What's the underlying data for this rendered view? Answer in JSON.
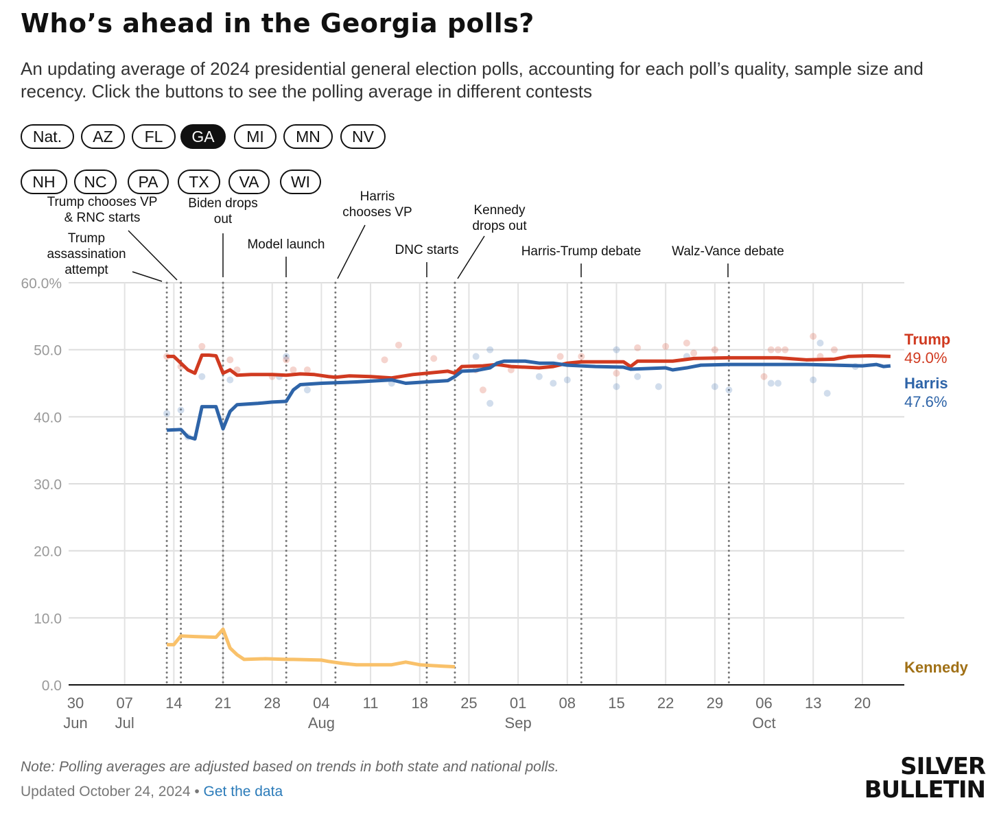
{
  "title": "Who’s ahead in the Georgia polls?",
  "subtitle": "An updating average of 2024 presidential general election polls, accounting for each poll’s quality, sample size and recency. Click the buttons to see the polling average in different contests",
  "buttons": [
    {
      "label": "Nat.",
      "active": false
    },
    {
      "label": "AZ",
      "active": false
    },
    {
      "label": "FL",
      "active": false
    },
    {
      "label": "GA",
      "active": true
    },
    {
      "label": "MI",
      "active": false
    },
    {
      "label": "MN",
      "active": false
    },
    {
      "label": "NV",
      "active": false
    },
    {
      "label": "NH",
      "active": false
    },
    {
      "label": "NC",
      "active": false
    },
    {
      "label": "PA",
      "active": false
    },
    {
      "label": "TX",
      "active": false
    },
    {
      "label": "VA",
      "active": false
    },
    {
      "label": "WI",
      "active": false
    }
  ],
  "note": "Note: Polling averages are adjusted based on trends in both state and national polls.",
  "updated": "Updated October 24, 2024 •",
  "get_data": "Get the data",
  "logo": [
    "SILVER",
    "BULLETIN"
  ],
  "chart_data": {
    "type": "line",
    "x_unit": "days since 30 Jun 2024",
    "ylim": [
      0,
      60
    ],
    "xlim": [
      0,
      117
    ],
    "y_ticks": [
      {
        "v": 0,
        "label": "0.0"
      },
      {
        "v": 10,
        "label": "10.0"
      },
      {
        "v": 20,
        "label": "20.0"
      },
      {
        "v": 30,
        "label": "30.0"
      },
      {
        "v": 40,
        "label": "40.0"
      },
      {
        "v": 50,
        "label": "50.0"
      },
      {
        "v": 60,
        "label": "60.0%"
      }
    ],
    "x_ticks": [
      {
        "d": 0,
        "label": "30",
        "month": "Jun"
      },
      {
        "d": 7,
        "label": "07",
        "month": "Jul"
      },
      {
        "d": 14,
        "label": "14"
      },
      {
        "d": 21,
        "label": "21"
      },
      {
        "d": 28,
        "label": "28"
      },
      {
        "d": 35,
        "label": "04",
        "month": "Aug"
      },
      {
        "d": 42,
        "label": "11"
      },
      {
        "d": 49,
        "label": "18"
      },
      {
        "d": 56,
        "label": "25"
      },
      {
        "d": 63,
        "label": "01",
        "month": "Sep"
      },
      {
        "d": 70,
        "label": "08"
      },
      {
        "d": 77,
        "label": "15"
      },
      {
        "d": 84,
        "label": "22"
      },
      {
        "d": 91,
        "label": "29"
      },
      {
        "d": 98,
        "label": "06",
        "month": "Oct"
      },
      {
        "d": 105,
        "label": "13"
      },
      {
        "d": 112,
        "label": "20"
      }
    ],
    "events": [
      {
        "d": 13,
        "lines": [
          "Trump",
          "assassination",
          "attempt"
        ]
      },
      {
        "d": 15,
        "lines": [
          "Trump chooses VP",
          "& RNC starts"
        ]
      },
      {
        "d": 21,
        "lines": [
          "Biden drops",
          "out"
        ]
      },
      {
        "d": 30,
        "lines": [
          "Model launch"
        ]
      },
      {
        "d": 37,
        "lines": [
          "Harris",
          "chooses VP"
        ]
      },
      {
        "d": 50,
        "lines": [
          "DNC starts"
        ]
      },
      {
        "d": 54,
        "lines": [
          "Kennedy",
          "drops out"
        ]
      },
      {
        "d": 72,
        "lines": [
          "Harris-Trump debate"
        ]
      },
      {
        "d": 93,
        "lines": [
          "Walz-Vance debate"
        ]
      }
    ],
    "series": [
      {
        "name": "Trump",
        "final_label": "49.0%",
        "color": "#d03a20",
        "points": [
          [
            13,
            49
          ],
          [
            14,
            49
          ],
          [
            15,
            48
          ],
          [
            16,
            47
          ],
          [
            17,
            46.5
          ],
          [
            18,
            49.2
          ],
          [
            19,
            49.2
          ],
          [
            20,
            49.1
          ],
          [
            21,
            46.5
          ],
          [
            22,
            47
          ],
          [
            23,
            46.2
          ],
          [
            25,
            46.3
          ],
          [
            28,
            46.3
          ],
          [
            30,
            46.2
          ],
          [
            32,
            46.4
          ],
          [
            34,
            46.3
          ],
          [
            36,
            46
          ],
          [
            37,
            45.9
          ],
          [
            39,
            46.1
          ],
          [
            42,
            46
          ],
          [
            45,
            45.8
          ],
          [
            48,
            46.3
          ],
          [
            50,
            46.5
          ],
          [
            53,
            46.8
          ],
          [
            54,
            46.5
          ],
          [
            55,
            47.5
          ],
          [
            58,
            47.6
          ],
          [
            60,
            47.8
          ],
          [
            62,
            47.5
          ],
          [
            66,
            47.3
          ],
          [
            68,
            47.5
          ],
          [
            70,
            48
          ],
          [
            72,
            48.2
          ],
          [
            74,
            48.2
          ],
          [
            78,
            48.2
          ],
          [
            79,
            47.5
          ],
          [
            80,
            48.3
          ],
          [
            85,
            48.3
          ],
          [
            88,
            48.7
          ],
          [
            93,
            48.8
          ],
          [
            100,
            48.8
          ],
          [
            104,
            48.5
          ],
          [
            108,
            48.6
          ],
          [
            110,
            49
          ],
          [
            113,
            49.1
          ],
          [
            116,
            49
          ]
        ],
        "polls": [
          [
            13,
            49
          ],
          [
            15,
            47.5
          ],
          [
            18,
            50.5
          ],
          [
            22,
            48.5
          ],
          [
            23,
            47
          ],
          [
            28,
            46
          ],
          [
            30,
            48.5
          ],
          [
            31,
            47
          ],
          [
            33,
            47
          ],
          [
            44,
            48.5
          ],
          [
            46,
            50.7
          ],
          [
            51,
            48.7
          ],
          [
            57,
            47
          ],
          [
            58,
            44
          ],
          [
            62,
            47
          ],
          [
            69,
            49
          ],
          [
            72,
            49
          ],
          [
            77,
            46.5
          ],
          [
            80,
            50.3
          ],
          [
            84,
            50.5
          ],
          [
            87,
            51
          ],
          [
            88,
            49.5
          ],
          [
            91,
            50
          ],
          [
            99,
            50
          ],
          [
            100,
            50
          ],
          [
            101,
            50
          ],
          [
            98,
            46
          ],
          [
            105,
            52
          ],
          [
            106,
            49
          ],
          [
            108,
            50
          ]
        ]
      },
      {
        "name": "Harris",
        "final_label": "47.6%",
        "color": "#2e64a8",
        "points": [
          [
            13,
            38
          ],
          [
            15,
            38.1
          ],
          [
            16,
            37
          ],
          [
            17,
            36.7
          ],
          [
            18,
            41.5
          ],
          [
            20,
            41.5
          ],
          [
            21,
            38.2
          ],
          [
            22,
            40.8
          ],
          [
            23,
            41.8
          ],
          [
            26,
            42
          ],
          [
            28,
            42.2
          ],
          [
            30,
            42.3
          ],
          [
            31,
            44
          ],
          [
            32,
            44.8
          ],
          [
            35,
            45
          ],
          [
            40,
            45.2
          ],
          [
            45,
            45.5
          ],
          [
            47,
            45
          ],
          [
            50,
            45.2
          ],
          [
            53,
            45.4
          ],
          [
            54,
            46
          ],
          [
            55,
            46.8
          ],
          [
            57,
            46.9
          ],
          [
            59,
            47.3
          ],
          [
            60,
            48
          ],
          [
            61,
            48.3
          ],
          [
            64,
            48.3
          ],
          [
            66,
            48
          ],
          [
            68,
            48
          ],
          [
            70,
            47.7
          ],
          [
            74,
            47.5
          ],
          [
            78,
            47.4
          ],
          [
            79,
            47.1
          ],
          [
            84,
            47.3
          ],
          [
            85,
            47
          ],
          [
            87,
            47.3
          ],
          [
            89,
            47.7
          ],
          [
            93,
            47.8
          ],
          [
            100,
            47.8
          ],
          [
            104,
            47.8
          ],
          [
            112,
            47.6
          ],
          [
            114,
            47.8
          ],
          [
            115,
            47.5
          ],
          [
            116,
            47.6
          ]
        ],
        "polls": [
          [
            13,
            40.5
          ],
          [
            15,
            41
          ],
          [
            16,
            37
          ],
          [
            18,
            46
          ],
          [
            22,
            45.5
          ],
          [
            29,
            46
          ],
          [
            30,
            49
          ],
          [
            33,
            44
          ],
          [
            45,
            45
          ],
          [
            57,
            49
          ],
          [
            59,
            50
          ],
          [
            59,
            42
          ],
          [
            66,
            46
          ],
          [
            68,
            45
          ],
          [
            70,
            45.5
          ],
          [
            77,
            44.5
          ],
          [
            77,
            50
          ],
          [
            80,
            46
          ],
          [
            83,
            44.5
          ],
          [
            87,
            49
          ],
          [
            91,
            44.5
          ],
          [
            93,
            44
          ],
          [
            99,
            45
          ],
          [
            100,
            45
          ],
          [
            105,
            45.5
          ],
          [
            106,
            51
          ],
          [
            107,
            43.5
          ],
          [
            111,
            47.5
          ]
        ]
      },
      {
        "name": "Kennedy",
        "final_label": "",
        "color": "#f9c16a",
        "label_color": "#a07016",
        "points": [
          [
            13,
            6
          ],
          [
            14,
            6
          ],
          [
            15,
            7.3
          ],
          [
            17,
            7.2
          ],
          [
            20,
            7.1
          ],
          [
            21,
            8.3
          ],
          [
            22,
            5.5
          ],
          [
            23,
            4.5
          ],
          [
            24,
            3.8
          ],
          [
            27,
            3.9
          ],
          [
            30,
            3.8
          ],
          [
            31,
            3.8
          ],
          [
            35,
            3.7
          ],
          [
            36,
            3.5
          ],
          [
            38,
            3.2
          ],
          [
            40,
            3
          ],
          [
            45,
            3
          ],
          [
            47,
            3.4
          ],
          [
            49,
            3
          ],
          [
            52,
            2.8
          ],
          [
            54,
            2.7
          ]
        ],
        "polls": []
      }
    ]
  }
}
